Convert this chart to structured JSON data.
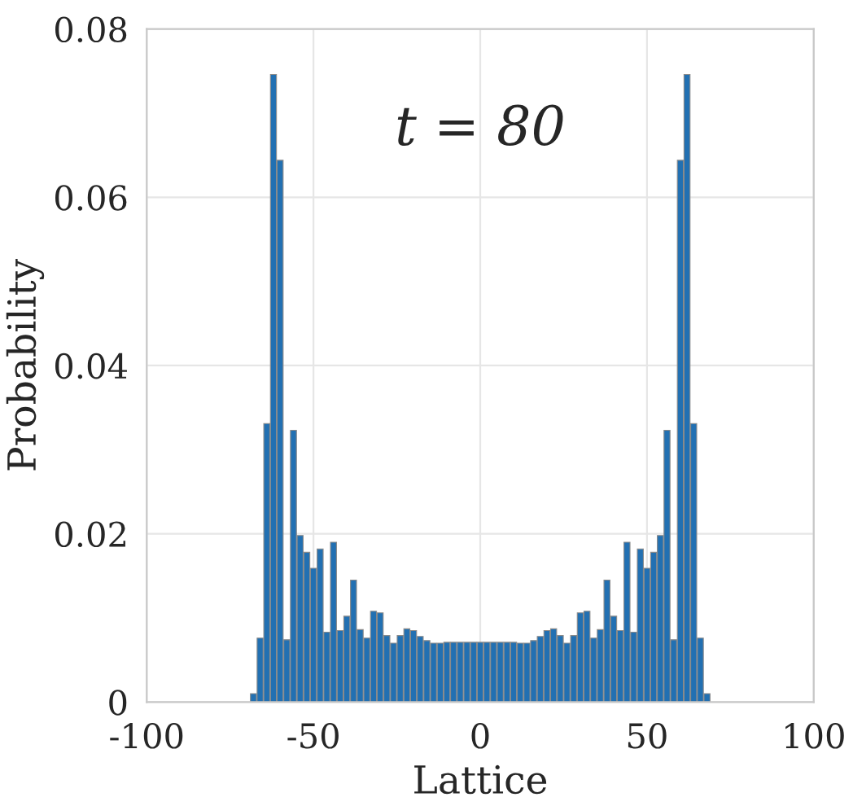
{
  "chart_data": {
    "type": "bar",
    "xlabel": "Lattice",
    "ylabel": "Probability",
    "annotations": [
      "t = 80"
    ],
    "x": [
      -68,
      -66,
      -64,
      -62,
      -60,
      -58,
      -56,
      -54,
      -52,
      -50,
      -48,
      -46,
      -44,
      -42,
      -40,
      -38,
      -36,
      -34,
      -32,
      -30,
      -28,
      -26,
      -24,
      -22,
      -20,
      -18,
      -16,
      -14,
      -12,
      -10,
      -8,
      -6,
      -4,
      -2,
      0,
      2,
      4,
      6,
      8,
      10,
      12,
      14,
      16,
      18,
      20,
      22,
      24,
      26,
      28,
      30,
      32,
      34,
      36,
      38,
      40,
      42,
      44,
      46,
      48,
      50,
      52,
      54,
      56,
      58,
      60,
      62,
      64,
      66,
      68
    ],
    "values": [
      0.001,
      0.0076,
      0.0331,
      0.0746,
      0.0644,
      0.0074,
      0.0323,
      0.0198,
      0.0178,
      0.0159,
      0.0182,
      0.0083,
      0.019,
      0.0085,
      0.0102,
      0.0145,
      0.0086,
      0.0076,
      0.0108,
      0.0106,
      0.0079,
      0.007,
      0.0079,
      0.0087,
      0.0085,
      0.0078,
      0.0073,
      0.007,
      0.007,
      0.0071,
      0.0071,
      0.0071,
      0.0071,
      0.0071,
      0.0071,
      0.0071,
      0.0071,
      0.0071,
      0.0071,
      0.0071,
      0.007,
      0.007,
      0.0073,
      0.0078,
      0.0085,
      0.0087,
      0.0079,
      0.007,
      0.0079,
      0.0106,
      0.0108,
      0.0076,
      0.0086,
      0.0145,
      0.0102,
      0.0085,
      0.019,
      0.0083,
      0.0182,
      0.0159,
      0.0178,
      0.0198,
      0.0323,
      0.0074,
      0.0644,
      0.0746,
      0.0331,
      0.0076,
      0.001
    ],
    "color": "#2270b2",
    "xlim": [
      -100,
      100
    ],
    "xticks": [
      -100,
      -50,
      0,
      50,
      100
    ],
    "ylim": [
      0,
      0.08
    ],
    "yticks": [
      0,
      0.02,
      0.04,
      0.06,
      0.08
    ],
    "grid": true
  }
}
